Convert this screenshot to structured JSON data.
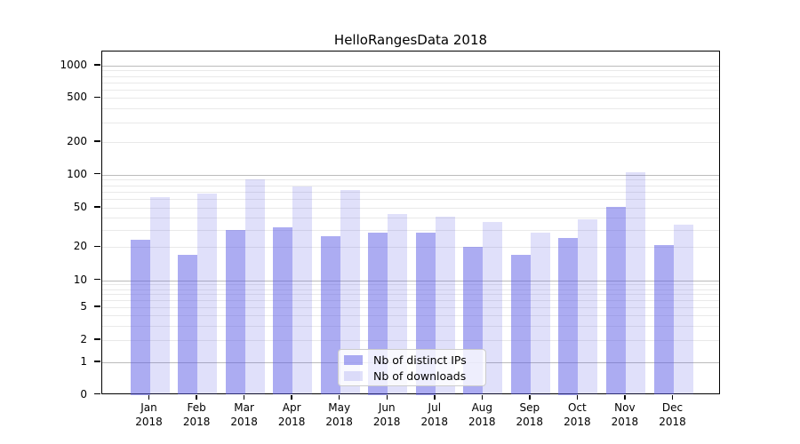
{
  "chart_data": {
    "type": "bar",
    "title": "HelloRangesData 2018",
    "xlabel": "",
    "ylabel": "",
    "yscale": "symlog",
    "yticks": [
      0,
      1,
      2,
      5,
      10,
      20,
      50,
      100,
      200,
      500,
      1000
    ],
    "ylim": [
      0,
      1300
    ],
    "grid": true,
    "legend_position": "lower center",
    "year": "2018",
    "categories": [
      "Jan",
      "Feb",
      "Mar",
      "Apr",
      "May",
      "Jun",
      "Jul",
      "Aug",
      "Sep",
      "Oct",
      "Nov",
      "Dec"
    ],
    "series": [
      {
        "name": "Nb of distinct IPs",
        "color": "rgba(90,90,230,0.50)",
        "values": [
          24,
          17,
          30,
          32,
          26,
          28,
          28,
          20,
          17,
          25,
          51,
          21
        ]
      },
      {
        "name": "Nb of downloads",
        "color": "rgba(90,90,230,0.19)",
        "values": [
          63,
          67,
          90,
          78,
          73,
          43,
          41,
          36,
          28,
          38,
          105,
          34
        ]
      }
    ],
    "colors": {
      "axis": "#000000",
      "major_grid": "#bbbbbb",
      "minor_grid": "#e9e9e9",
      "legend_border": "#cccccc"
    }
  }
}
